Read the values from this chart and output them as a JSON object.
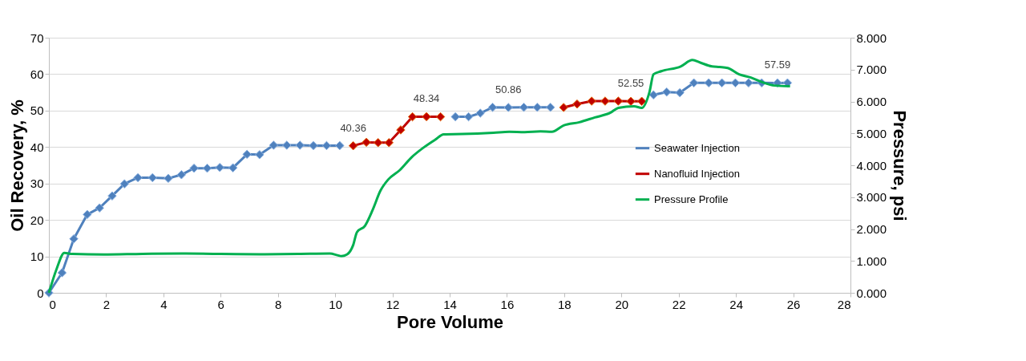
{
  "chart_data": {
    "type": "line",
    "xlabel": "Pore Volume",
    "ylabel": "Oil Recovery, %",
    "y2label": "Pressure, psi",
    "xlim": [
      0,
      28
    ],
    "xticks": [
      0,
      2,
      4,
      6,
      8,
      10,
      12,
      14,
      16,
      18,
      20,
      22,
      24,
      26,
      28
    ],
    "ylim": [
      0,
      70
    ],
    "yticks": [
      0,
      10,
      20,
      30,
      40,
      50,
      60,
      70
    ],
    "y2lim": [
      0,
      8
    ],
    "y2ticks": [
      {
        "value": 0,
        "label": "0.000"
      },
      {
        "value": 1,
        "label": "1.000"
      },
      {
        "value": 2,
        "label": "2.000"
      },
      {
        "value": 3,
        "label": "3.000"
      },
      {
        "value": 4,
        "label": "4.000"
      },
      {
        "value": 5,
        "label": "5.000"
      },
      {
        "value": 6,
        "label": "6.000"
      },
      {
        "value": 7,
        "label": "7.000"
      },
      {
        "value": 8,
        "label": "8.000"
      }
    ],
    "grid": "y",
    "legend": "right",
    "marker": "diamond",
    "line_style": "solid",
    "series": [
      {
        "name": "Seawater Injection",
        "color": "#4f81bd",
        "x": [
          0,
          0.46,
          0.87,
          1.34,
          1.77,
          2.21,
          2.64,
          3.11,
          3.62,
          4.17,
          4.63,
          5.07,
          5.53,
          5.97,
          6.43,
          6.92,
          7.36,
          7.85,
          8.31,
          8.77,
          9.24,
          9.7,
          10.16,
          12.0,
          14.2,
          14.66,
          15.07,
          15.5,
          16.05,
          16.59,
          17.06,
          17.52,
          19.0,
          21.12,
          21.58,
          22.04,
          22.53,
          23.05,
          23.51,
          23.98,
          24.44,
          24.9,
          25.45,
          25.8
        ],
        "values": [
          0,
          5.5,
          14.8,
          21.5,
          23.3,
          26.6,
          29.9,
          31.6,
          31.6,
          31.4,
          32.4,
          34.2,
          34.2,
          34.4,
          34.3,
          38.0,
          37.9,
          40.5,
          40.5,
          40.5,
          40.4,
          40.4,
          40.4,
          null,
          48.3,
          48.3,
          49.3,
          50.9,
          50.86,
          50.9,
          50.9,
          50.9,
          null,
          54.3,
          55.1,
          54.9,
          57.6,
          57.6,
          57.6,
          57.6,
          57.6,
          57.6,
          57.59,
          57.6
        ]
      },
      {
        "name": "Nanofluid Injection",
        "color": "#c00000",
        "x": [
          10.63,
          11.09,
          11.5,
          11.88,
          12.29,
          12.7,
          13.19,
          13.68,
          15.8,
          17.98,
          18.45,
          18.96,
          19.43,
          19.89,
          20.33,
          20.71
        ],
        "values": [
          40.36,
          41.3,
          41.2,
          41.2,
          44.7,
          48.3,
          48.34,
          48.3,
          null,
          50.86,
          51.8,
          52.6,
          52.6,
          52.6,
          52.55,
          52.55
        ]
      },
      {
        "name": "Pressure Profile",
        "color": "#00b050",
        "marker": "none",
        "axis": "y2",
        "x": [
          0,
          0.27,
          0.54,
          0.82,
          1.91,
          3.27,
          4.63,
          5.99,
          7.36,
          8.72,
          9.81,
          10.08,
          10.22,
          10.41,
          10.63,
          10.76,
          11.04,
          11.31,
          11.58,
          11.85,
          12.26,
          12.67,
          13.08,
          13.49,
          13.79,
          14.44,
          15.53,
          16.08,
          16.62,
          17.17,
          17.57,
          17.98,
          18.53,
          19.07,
          19.62,
          19.89,
          20.44,
          20.71,
          20.98,
          21.12,
          21.39,
          22.07,
          22.48,
          22.75,
          23.16,
          23.43,
          23.71,
          24.11,
          24.52,
          24.93,
          25.34,
          25.89
        ],
        "values": [
          0,
          0.75,
          1.25,
          1.22,
          1.2,
          1.22,
          1.23,
          1.22,
          1.21,
          1.22,
          1.23,
          1.18,
          1.15,
          1.2,
          1.5,
          1.9,
          2.1,
          2.6,
          3.2,
          3.55,
          3.85,
          4.25,
          4.55,
          4.8,
          4.97,
          4.98,
          5.02,
          5.05,
          5.04,
          5.06,
          5.05,
          5.25,
          5.35,
          5.5,
          5.65,
          5.8,
          5.85,
          5.8,
          6.3,
          6.85,
          6.95,
          7.1,
          7.3,
          7.22,
          7.1,
          7.08,
          7.05,
          6.85,
          6.75,
          6.6,
          6.5,
          6.48
        ]
      }
    ],
    "annotations": [
      {
        "text": "40.36",
        "x": 10.63,
        "y": 40.36
      },
      {
        "text": "48.34",
        "x": 13.19,
        "y": 48.34
      },
      {
        "text": "50.86",
        "x": 16.05,
        "y": 50.86
      },
      {
        "text": "52.55",
        "x": 20.33,
        "y": 52.55
      },
      {
        "text": "57.59",
        "x": 25.45,
        "y": 57.59
      }
    ]
  }
}
